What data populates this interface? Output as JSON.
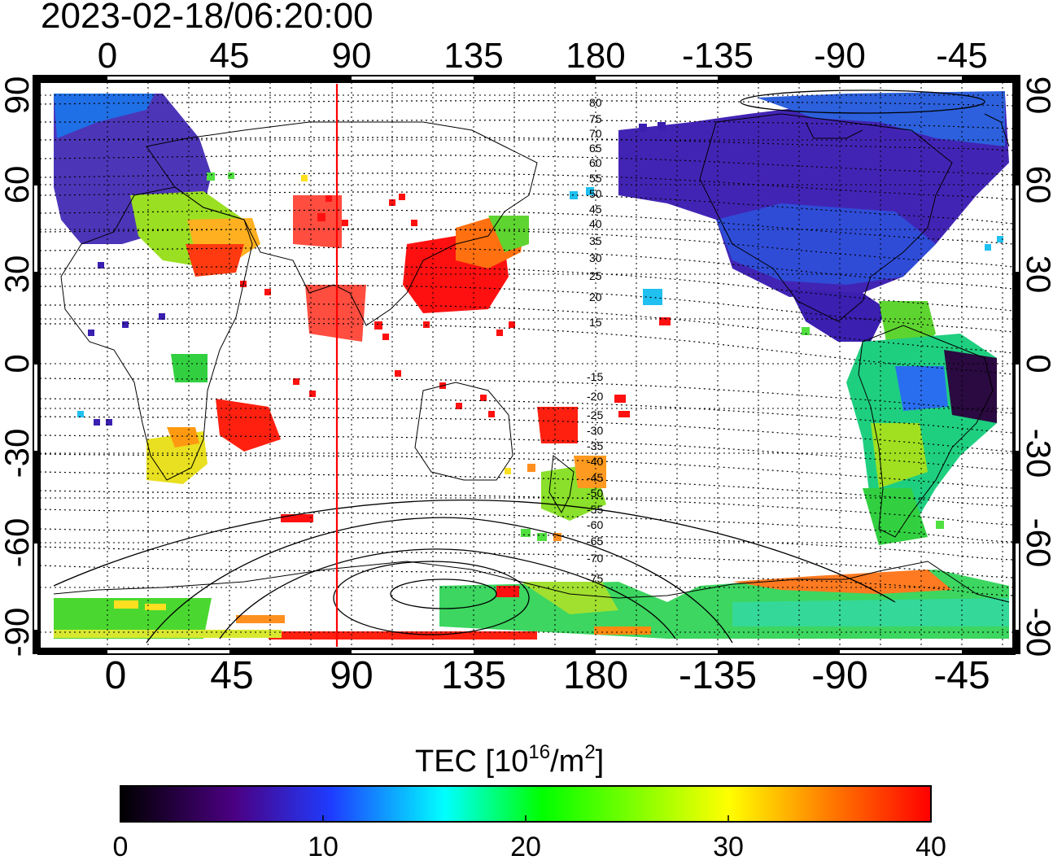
{
  "timestamp": "2023-02-18/06:20:00",
  "map": {
    "longitude_labels": [
      "0",
      "45",
      "90",
      "135",
      "180",
      "-135",
      "-90",
      "-45"
    ],
    "latitude_labels": [
      "90",
      "60",
      "30",
      "0",
      "-30",
      "-60",
      "-90"
    ],
    "magnetic_latitude_labels_north": [
      "80",
      "75",
      "70",
      "65",
      "60",
      "55",
      "50",
      "45",
      "40",
      "35",
      "30",
      "25",
      "20",
      "15"
    ],
    "magnetic_latitude_labels_south": [
      "-15",
      "-20",
      "-25",
      "-30",
      "-35",
      "-40",
      "-45",
      "-50",
      "-55",
      "-60",
      "-65",
      "-70",
      "-75"
    ],
    "marker_line_color": "#ff0000"
  },
  "colorbar": {
    "title_main": "TEC  [10",
    "title_sup1": "16",
    "title_mid": "/m",
    "title_sup2": "2",
    "title_end": "]",
    "tick_labels": [
      "0",
      "10",
      "20",
      "30",
      "40"
    ],
    "range": [
      0,
      40
    ],
    "colors": [
      "#000000",
      "#4b0082",
      "#1e3cff",
      "#00ffff",
      "#00ff00",
      "#ffff00",
      "#ff8000",
      "#ff0000"
    ]
  }
}
